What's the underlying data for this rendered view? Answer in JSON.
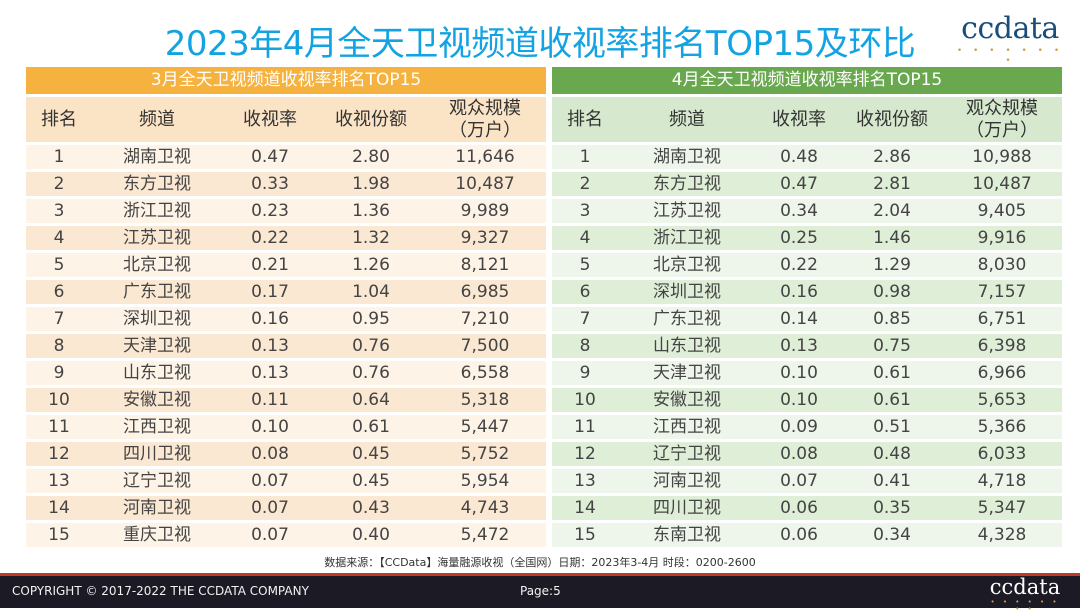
{
  "title": "2023年4月全天卫视频道收视率排名TOP15及环比",
  "brand": {
    "name": "ccdata",
    "dots": "• • • • • • • •"
  },
  "colors": {
    "title": "#13a3e2",
    "march_header": "#f6b23f",
    "april_header": "#6aa84f",
    "footer_bg": "#1c1b25"
  },
  "columns": [
    "排名",
    "频道",
    "收视率",
    "收视份额",
    "观众规模（万户）"
  ],
  "march": {
    "heading": "3月全天卫视频道收视率排名TOP15",
    "rows": [
      [
        "1",
        "湖南卫视",
        "0.47",
        "2.80",
        "11,646"
      ],
      [
        "2",
        "东方卫视",
        "0.33",
        "1.98",
        "10,487"
      ],
      [
        "3",
        "浙江卫视",
        "0.23",
        "1.36",
        "9,989"
      ],
      [
        "4",
        "江苏卫视",
        "0.22",
        "1.32",
        "9,327"
      ],
      [
        "5",
        "北京卫视",
        "0.21",
        "1.26",
        "8,121"
      ],
      [
        "6",
        "广东卫视",
        "0.17",
        "1.04",
        "6,985"
      ],
      [
        "7",
        "深圳卫视",
        "0.16",
        "0.95",
        "7,210"
      ],
      [
        "8",
        "天津卫视",
        "0.13",
        "0.76",
        "7,500"
      ],
      [
        "9",
        "山东卫视",
        "0.13",
        "0.76",
        "6,558"
      ],
      [
        "10",
        "安徽卫视",
        "0.11",
        "0.64",
        "5,318"
      ],
      [
        "11",
        "江西卫视",
        "0.10",
        "0.61",
        "5,447"
      ],
      [
        "12",
        "四川卫视",
        "0.08",
        "0.45",
        "5,752"
      ],
      [
        "13",
        "辽宁卫视",
        "0.07",
        "0.45",
        "5,954"
      ],
      [
        "14",
        "河南卫视",
        "0.07",
        "0.43",
        "4,743"
      ],
      [
        "15",
        "重庆卫视",
        "0.07",
        "0.40",
        "5,472"
      ]
    ]
  },
  "april": {
    "heading": "4月全天卫视频道收视率排名TOP15",
    "rows": [
      [
        "1",
        "湖南卫视",
        "0.48",
        "2.86",
        "10,988"
      ],
      [
        "2",
        "东方卫视",
        "0.47",
        "2.81",
        "10,487"
      ],
      [
        "3",
        "江苏卫视",
        "0.34",
        "2.04",
        "9,405"
      ],
      [
        "4",
        "浙江卫视",
        "0.25",
        "1.46",
        "9,916"
      ],
      [
        "5",
        "北京卫视",
        "0.22",
        "1.29",
        "8,030"
      ],
      [
        "6",
        "深圳卫视",
        "0.16",
        "0.98",
        "7,157"
      ],
      [
        "7",
        "广东卫视",
        "0.14",
        "0.85",
        "6,751"
      ],
      [
        "8",
        "山东卫视",
        "0.13",
        "0.75",
        "6,398"
      ],
      [
        "9",
        "天津卫视",
        "0.10",
        "0.61",
        "6,966"
      ],
      [
        "10",
        "安徽卫视",
        "0.10",
        "0.61",
        "5,653"
      ],
      [
        "11",
        "江西卫视",
        "0.09",
        "0.51",
        "5,366"
      ],
      [
        "12",
        "辽宁卫视",
        "0.08",
        "0.48",
        "6,033"
      ],
      [
        "13",
        "河南卫视",
        "0.07",
        "0.41",
        "4,718"
      ],
      [
        "14",
        "四川卫视",
        "0.06",
        "0.35",
        "5,347"
      ],
      [
        "15",
        "东南卫视",
        "0.06",
        "0.34",
        "4,328"
      ]
    ]
  },
  "source": "数据来源：【CCData】海量融源收视（全国网）日期：2023年3-4月 时段：0200-2600",
  "footer": {
    "copyright": "COPYRIGHT © 2017-2022 THE CCDATA COMPANY",
    "page": "Page:5"
  }
}
